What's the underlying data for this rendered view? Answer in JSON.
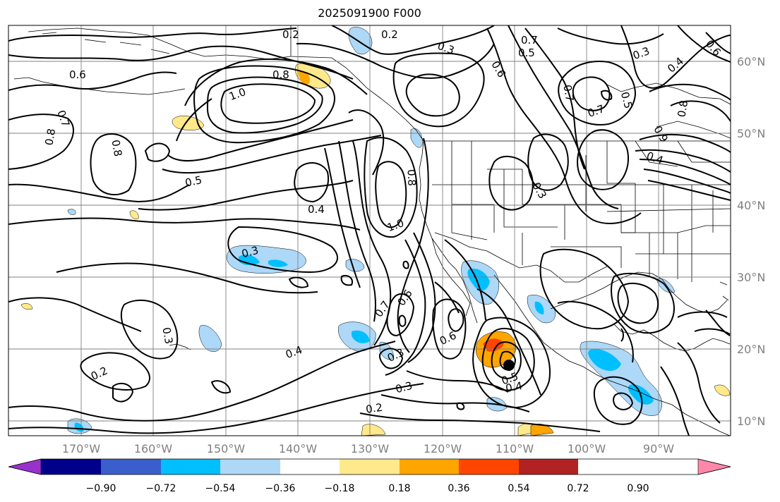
{
  "title": "2025091900 F000",
  "map": {
    "lat_labels": [
      "60°N",
      "50°N",
      "40°N",
      "30°N",
      "20°N",
      "10°N"
    ],
    "lon_labels": [
      "170°W",
      "160°W",
      "150°W",
      "140°W",
      "130°W",
      "120°W",
      "110°W",
      "100°W",
      "90°W"
    ],
    "contour_labels": [
      "0.2",
      "0.2",
      "0.6",
      "0.8",
      "1.0",
      "0.7",
      "0.8",
      "0.8",
      "0.5",
      "0.4",
      "0.3",
      "0.3",
      "0.4",
      "0.2",
      "0.3",
      "0.6",
      "0.7",
      "0.3",
      "0.6",
      "0.5",
      "0.4",
      "1.0",
      "0.8",
      "0.3",
      "0.2",
      "0.7",
      "0.5",
      "0.7",
      "0.6",
      "0.5",
      "0.3",
      "0.4",
      "0.8",
      "0.9",
      "0.7",
      "0.3",
      "0.6",
      "0.4"
    ]
  },
  "colorbar": {
    "ticks": [
      "−0.90",
      "−0.72",
      "−0.54",
      "−0.36",
      "−0.18",
      "0.18",
      "0.36",
      "0.54",
      "0.72",
      "0.90"
    ],
    "colors": [
      "#9932cc",
      "#00008b",
      "#3a5fcd",
      "#00bfff",
      "#add8f7",
      "#ffffff",
      "#ffe98a",
      "#ffa500",
      "#ff4500",
      "#b22222",
      "#ff88aa"
    ]
  }
}
